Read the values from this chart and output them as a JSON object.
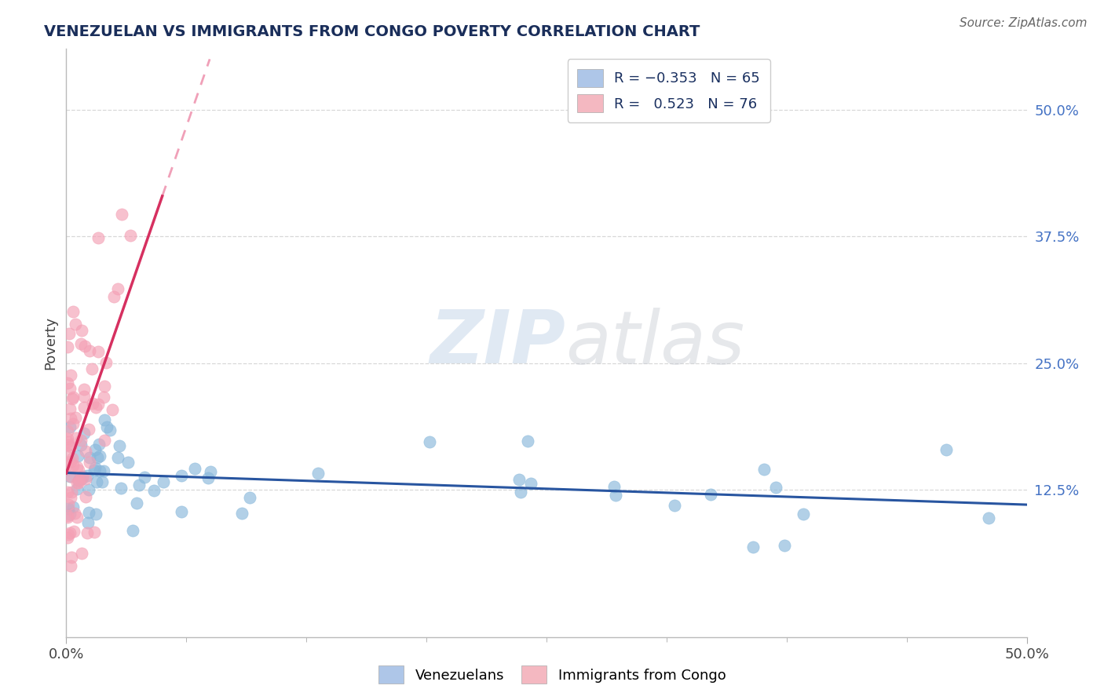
{
  "title": "VENEZUELAN VS IMMIGRANTS FROM CONGO POVERTY CORRELATION CHART",
  "source": "Source: ZipAtlas.com",
  "ylabel": "Poverty",
  "ytick_labels": [
    "12.5%",
    "25.0%",
    "37.5%",
    "50.0%"
  ],
  "ytick_values": [
    0.125,
    0.25,
    0.375,
    0.5
  ],
  "xlim": [
    0.0,
    0.5
  ],
  "ylim": [
    -0.02,
    0.56
  ],
  "venezuelan_color": "#89b8db",
  "venezuelan_edge": "#89b8db",
  "congo_color": "#f4a0b5",
  "congo_edge": "#f4a0b5",
  "trend_venezuelan_color": "#2855a0",
  "trend_congo_solid_color": "#d63060",
  "trend_congo_dash_color": "#f0a0b8",
  "background_color": "#ffffff",
  "watermark_zip": "ZIP",
  "watermark_atlas": "atlas",
  "grid_color": "#d8d8d8",
  "spine_color": "#bbbbbb"
}
